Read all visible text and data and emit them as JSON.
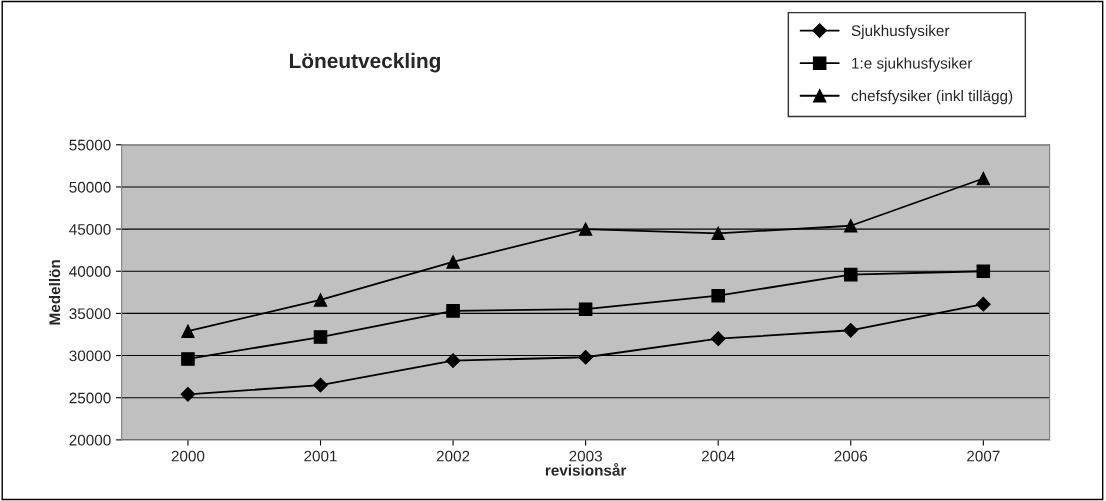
{
  "chart_data": {
    "type": "line",
    "title": "Löneutveckling",
    "xlabel": "revisionsår",
    "ylabel": "Medellön",
    "categories": [
      "2000",
      "2001",
      "2002",
      "2003",
      "2004",
      "2006",
      "2007"
    ],
    "series": [
      {
        "name": "Sjukhusfysiker",
        "color": "#000000",
        "marker": "diamond",
        "values": [
          25400,
          26500,
          29400,
          29800,
          32000,
          33000,
          36100
        ]
      },
      {
        "name": "1:e sjukhusfysiker",
        "color": "#000000",
        "marker": "square",
        "values": [
          29600,
          32200,
          35300,
          35500,
          37100,
          39600,
          40000
        ]
      },
      {
        "name": "chefsfysiker (inkl tillägg)",
        "color": "#000000",
        "marker": "triangle",
        "values": [
          32900,
          36600,
          41100,
          45000,
          44500,
          45400,
          51000
        ]
      }
    ],
    "ylim": [
      20000,
      55000
    ],
    "yticks": [
      20000,
      25000,
      30000,
      35000,
      40000,
      45000,
      50000,
      55000
    ],
    "grid": "y",
    "legend": "top right",
    "line_style": "solid"
  }
}
